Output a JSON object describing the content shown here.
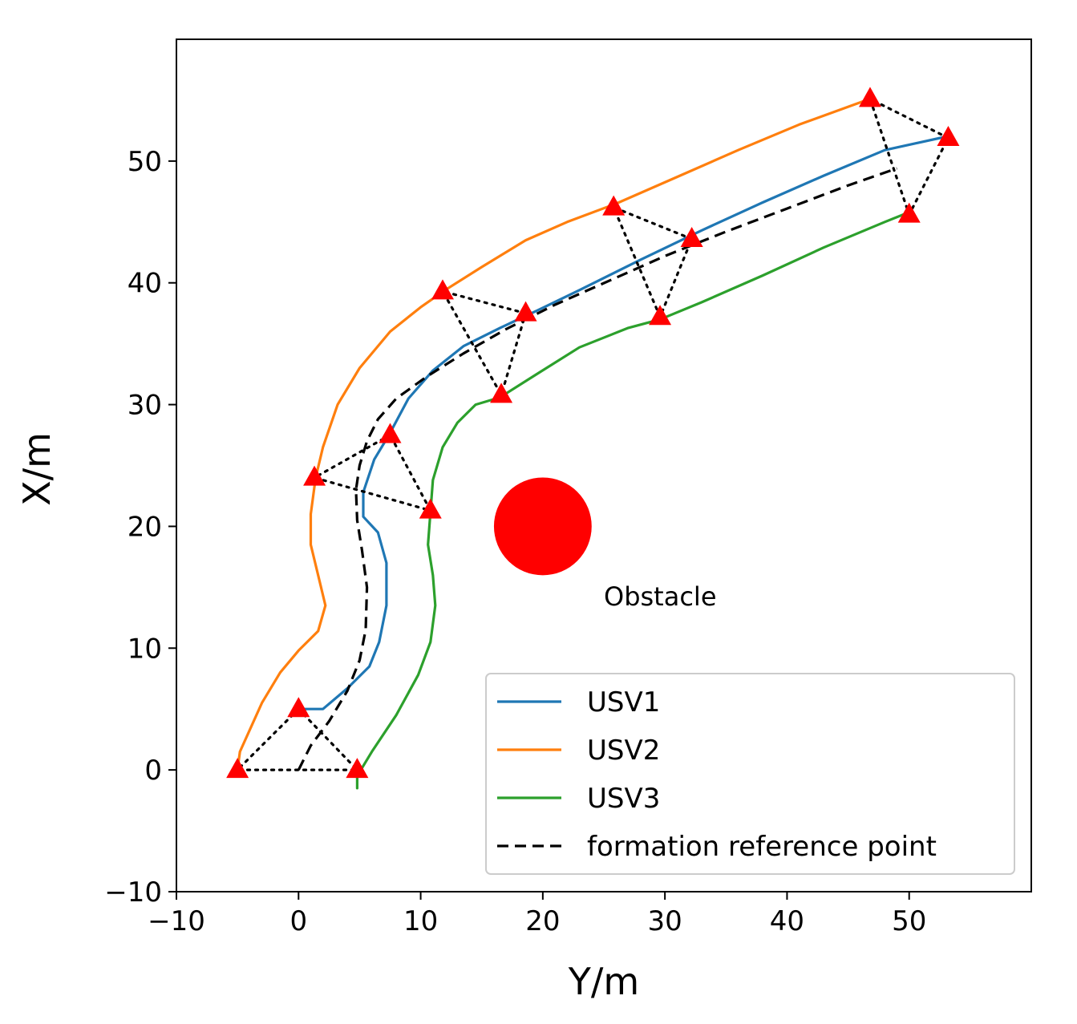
{
  "chart_data": {
    "type": "line",
    "xlabel": "Y/m",
    "ylabel": "X/m",
    "xlim": [
      -10,
      60
    ],
    "ylim": [
      -10,
      60
    ],
    "xticks": [
      -10,
      0,
      10,
      20,
      30,
      40,
      50
    ],
    "yticks": [
      -10,
      0,
      10,
      20,
      30,
      40,
      50
    ],
    "xtick_labels": [
      "−10",
      "0",
      "10",
      "20",
      "30",
      "40",
      "50"
    ],
    "ytick_labels": [
      "−10",
      "0",
      "10",
      "20",
      "30",
      "40",
      "50"
    ],
    "grid": false,
    "legend_position": "lower-right",
    "series": [
      {
        "name": "USV1",
        "color": "#1f77b4",
        "style": "solid",
        "x": [
          0,
          2,
          4,
          5.8,
          6.6,
          7.2,
          7.2,
          6.5,
          5.3,
          5.3,
          6.2,
          7.4,
          9.0,
          11.0,
          13.5,
          16.5,
          19.5,
          23.0,
          28.0,
          33.0,
          38.0,
          43.0,
          48.0,
          53.0
        ],
        "y": [
          5.0,
          5.0,
          6.7,
          8.5,
          10.5,
          13.5,
          17.0,
          19.5,
          20.8,
          22.8,
          25.5,
          27.5,
          30.5,
          32.8,
          34.8,
          36.3,
          37.7,
          39.4,
          41.9,
          44.3,
          46.6,
          48.8,
          50.9,
          52.0
        ]
      },
      {
        "name": "USV2",
        "color": "#ff7f0e",
        "style": "solid",
        "x": [
          -5.0,
          -4.8,
          -3.0,
          -1.5,
          0.0,
          1.6,
          2.2,
          1.6,
          1.0,
          1.0,
          1.4,
          2.0,
          3.2,
          5.0,
          7.5,
          10.0,
          12.0,
          15.0,
          18.6,
          22.0,
          26.0,
          31.0,
          36.0,
          41.0,
          46.5
        ],
        "y": [
          0.0,
          1.5,
          5.5,
          8.0,
          9.8,
          11.4,
          13.5,
          16.0,
          18.5,
          21.0,
          24.0,
          26.5,
          30.0,
          33.0,
          36.0,
          38.0,
          39.4,
          41.3,
          43.5,
          45.0,
          46.5,
          48.7,
          50.9,
          53.0,
          55.0
        ]
      },
      {
        "name": "USV3",
        "color": "#2ca02c",
        "style": "solid",
        "x": [
          4.8,
          4.8,
          6.0,
          8.0,
          9.8,
          10.8,
          11.2,
          11.0,
          10.6,
          10.8,
          11.0,
          11.8,
          13.0,
          14.5,
          16.5,
          19.5,
          23.0,
          27.0,
          29.6,
          33.0,
          38.0,
          43.0,
          48.0,
          50.0
        ],
        "y": [
          -1.5,
          -0.5,
          1.5,
          4.5,
          7.8,
          10.5,
          13.5,
          16.0,
          18.5,
          21.2,
          23.8,
          26.5,
          28.5,
          30.0,
          30.6,
          32.5,
          34.7,
          36.3,
          37.0,
          38.4,
          40.6,
          42.9,
          45.0,
          45.8
        ]
      },
      {
        "name": "formation reference point",
        "color": "#000000",
        "style": "dashed",
        "x": [
          0.0,
          1.0,
          2.5,
          4.0,
          5.0,
          5.5,
          5.6,
          5.2,
          4.8,
          4.7,
          5.0,
          5.6,
          6.5,
          8.0,
          10.5,
          13.5,
          17.0,
          21.0,
          25.5,
          30.0,
          35.0,
          40.0,
          45.0,
          49.0
        ],
        "y": [
          0.0,
          2.0,
          4.0,
          6.5,
          9.0,
          11.5,
          15.0,
          18.0,
          20.5,
          23.0,
          25.0,
          27.0,
          28.8,
          30.5,
          32.3,
          34.2,
          36.2,
          38.2,
          40.2,
          42.2,
          44.2,
          46.1,
          48.0,
          49.4
        ]
      }
    ],
    "formation_markers": {
      "color": "#ff0000",
      "marker": "triangle",
      "triangles": [
        [
          [
            0.0,
            5.0
          ],
          [
            -5.0,
            0.0
          ],
          [
            4.8,
            0.0
          ]
        ],
        [
          [
            7.5,
            27.5
          ],
          [
            1.3,
            24.0
          ],
          [
            10.8,
            21.3
          ]
        ],
        [
          [
            18.6,
            37.5
          ],
          [
            11.8,
            39.3
          ],
          [
            16.6,
            30.8
          ]
        ],
        [
          [
            32.2,
            43.6
          ],
          [
            25.8,
            46.2
          ],
          [
            29.6,
            37.2
          ]
        ],
        [
          [
            53.2,
            51.9
          ],
          [
            46.8,
            55.1
          ],
          [
            50.0,
            45.6
          ]
        ]
      ]
    },
    "obstacle": {
      "center": [
        20,
        20
      ],
      "radius": 4,
      "color": "#ff0000",
      "label": "Obstacle",
      "label_at": [
        25,
        13.5
      ]
    }
  }
}
